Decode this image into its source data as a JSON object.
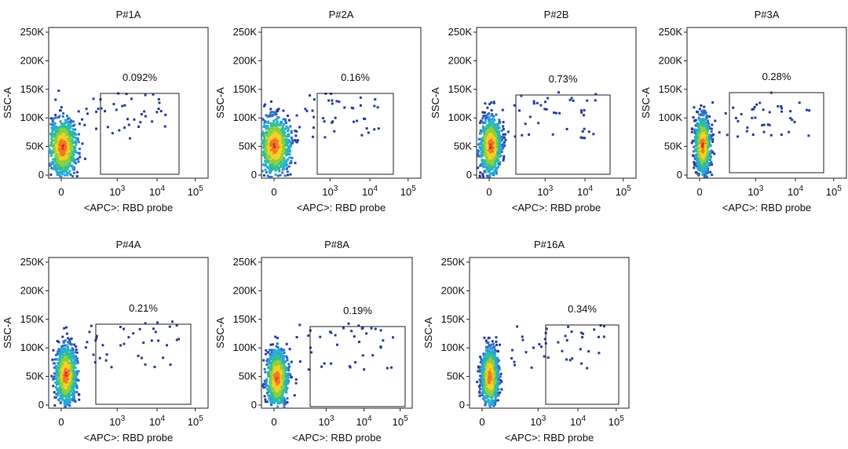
{
  "chart_data": [
    {
      "type": "scatter",
      "title": "P#1A",
      "xlabel": "<APC>: RBD probe",
      "ylabel": "SSC-A",
      "gate_label": "0.092%",
      "y_ticks": [
        "0",
        "50K",
        "100K",
        "150K",
        "200K",
        "250K"
      ],
      "x_ticks": [
        {
          "base": "0",
          "exp": ""
        },
        {
          "base": "10",
          "exp": "3"
        },
        {
          "base": "10",
          "exp": "4"
        },
        {
          "base": "10",
          "exp": "5"
        }
      ],
      "ylim": [
        0,
        260000
      ]
    },
    {
      "type": "scatter",
      "title": "P#2A",
      "xlabel": "<APC>: RBD probe",
      "ylabel": "SSC-A",
      "gate_label": "0.16%",
      "y_ticks": [
        "0",
        "50K",
        "100K",
        "150K",
        "200K",
        "250K"
      ],
      "x_ticks": [
        {
          "base": "0",
          "exp": ""
        },
        {
          "base": "10",
          "exp": "3"
        },
        {
          "base": "10",
          "exp": "4"
        },
        {
          "base": "10",
          "exp": "5"
        }
      ],
      "ylim": [
        0,
        260000
      ]
    },
    {
      "type": "scatter",
      "title": "P#2B",
      "xlabel": "<APC>: RBD probe",
      "ylabel": "SSC-A",
      "gate_label": "0.73%",
      "y_ticks": [
        "0",
        "50K",
        "100K",
        "150K",
        "200K",
        "250K"
      ],
      "x_ticks": [
        {
          "base": "0",
          "exp": ""
        },
        {
          "base": "10",
          "exp": "3"
        },
        {
          "base": "10",
          "exp": "4"
        },
        {
          "base": "10",
          "exp": "5"
        }
      ],
      "ylim": [
        0,
        260000
      ]
    },
    {
      "type": "scatter",
      "title": "P#3A",
      "xlabel": "<APC>: RBD probe",
      "ylabel": "SSC-A",
      "gate_label": "0.28%",
      "y_ticks": [
        "0",
        "50K",
        "100K",
        "150K",
        "200K",
        "250K"
      ],
      "x_ticks": [
        {
          "base": "0",
          "exp": ""
        },
        {
          "base": "10",
          "exp": "3"
        },
        {
          "base": "10",
          "exp": "4"
        },
        {
          "base": "10",
          "exp": "5"
        }
      ],
      "ylim": [
        0,
        260000
      ]
    },
    {
      "type": "scatter",
      "title": "P#4A",
      "xlabel": "<APC>: RBD probe",
      "ylabel": "SSC-A",
      "gate_label": "0.21%",
      "y_ticks": [
        "0",
        "50K",
        "100K",
        "150K",
        "200K",
        "250K"
      ],
      "x_ticks": [
        {
          "base": "0",
          "exp": ""
        },
        {
          "base": "10",
          "exp": "3"
        },
        {
          "base": "10",
          "exp": "4"
        },
        {
          "base": "10",
          "exp": "5"
        }
      ],
      "ylim": [
        0,
        260000
      ]
    },
    {
      "type": "scatter",
      "title": "P#8A",
      "xlabel": "<APC>: RBD probe",
      "ylabel": "SSC-A",
      "gate_label": "0.19%",
      "y_ticks": [
        "0",
        "50K",
        "100K",
        "150K",
        "200K",
        "250K"
      ],
      "x_ticks": [
        {
          "base": "0",
          "exp": ""
        },
        {
          "base": "10",
          "exp": "3"
        },
        {
          "base": "10",
          "exp": "4"
        },
        {
          "base": "10",
          "exp": "5"
        }
      ],
      "ylim": [
        0,
        260000
      ]
    },
    {
      "type": "scatter",
      "title": "P#16A",
      "xlabel": "<APC>: RBD probe",
      "ylabel": "SSC-A",
      "gate_label": "0.34%",
      "y_ticks": [
        "0",
        "50K",
        "100K",
        "150K",
        "200K",
        "250K"
      ],
      "x_ticks": [
        {
          "base": "0",
          "exp": ""
        },
        {
          "base": "10",
          "exp": "3"
        },
        {
          "base": "10",
          "exp": "4"
        },
        {
          "base": "10",
          "exp": "5"
        }
      ],
      "ylim": [
        0,
        260000
      ]
    }
  ],
  "density_colors": [
    "#2a3f9a",
    "#2f6fc2",
    "#27a7d8",
    "#2fbf9a",
    "#8fcf3a",
    "#f3d229",
    "#f07a22",
    "#e02020"
  ]
}
